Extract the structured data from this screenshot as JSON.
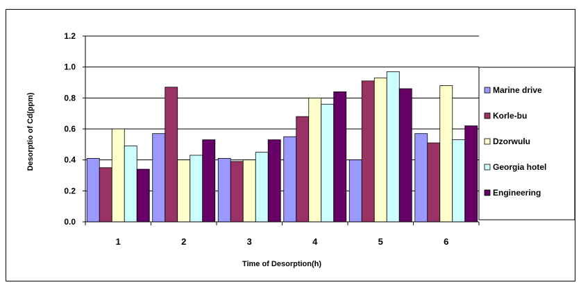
{
  "chart_data": {
    "type": "bar",
    "title": "",
    "xlabel": "Time of Desorption(h)",
    "ylabel": "Desorptio  of  Cd(ppm)",
    "categories": [
      "1",
      "2",
      "3",
      "4",
      "5",
      "6"
    ],
    "ylim": [
      0,
      1.2
    ],
    "yticks": [
      "0.0",
      "0.2",
      "0.4",
      "0.6",
      "0.8",
      "1.0",
      "1.2"
    ],
    "grid": "horizontal",
    "legend_position": "right",
    "series": [
      {
        "name": "Marine drive",
        "color": "#9999FF",
        "values": [
          0.41,
          0.57,
          0.41,
          0.55,
          0.4,
          0.57
        ]
      },
      {
        "name": "Korle-bu",
        "color": "#993366",
        "values": [
          0.35,
          0.87,
          0.39,
          0.68,
          0.91,
          0.51
        ]
      },
      {
        "name": "Dzorwulu",
        "color": "#FFFFCC",
        "values": [
          0.6,
          0.4,
          0.4,
          0.8,
          0.93,
          0.88
        ]
      },
      {
        "name": "Georgia hotel",
        "color": "#CCFFFF",
        "values": [
          0.49,
          0.43,
          0.45,
          0.76,
          0.97,
          0.53
        ]
      },
      {
        "name": "Engineering",
        "color": "#660066",
        "values": [
          0.34,
          0.53,
          0.53,
          0.84,
          0.86,
          0.62
        ]
      }
    ]
  }
}
